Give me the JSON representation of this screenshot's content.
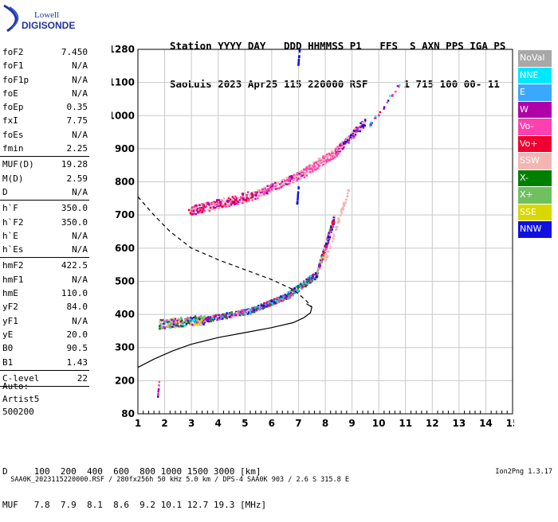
{
  "logo": {
    "line1": "Lowell",
    "line2": "DIGISONDE"
  },
  "header": {
    "line1": "Station YYYY DAY   DDD HHMMSS P1   FFS  S AXN PPS IGA PS",
    "line2": "SaoLuis 2023 Apr25 115 220000 RSF      1 715 100 00- 11"
  },
  "params": [
    {
      "k": "foF2",
      "v": "7.450"
    },
    {
      "k": "foF1",
      "v": "N/A"
    },
    {
      "k": "foF1p",
      "v": "N/A"
    },
    {
      "k": "foE",
      "v": "N/A"
    },
    {
      "k": "foEp",
      "v": "0.35"
    },
    {
      "k": "fxI",
      "v": "7.75"
    },
    {
      "k": "foEs",
      "v": "N/A"
    },
    {
      "k": "fmin",
      "v": "2.25"
    },
    {
      "sep": true
    },
    {
      "k": "MUF(D)",
      "v": "19.28"
    },
    {
      "k": "M(D)",
      "v": "2.59"
    },
    {
      "k": "D",
      "v": "N/A"
    },
    {
      "sep": true
    },
    {
      "k": "h`F",
      "v": "350.0"
    },
    {
      "k": "h`F2",
      "v": "350.0"
    },
    {
      "k": "h`E",
      "v": "N/A"
    },
    {
      "k": "h`Es",
      "v": "N/A"
    },
    {
      "sep": true
    },
    {
      "k": "hmF2",
      "v": "422.5"
    },
    {
      "k": "hmF1",
      "v": "N/A"
    },
    {
      "k": "hmE",
      "v": "110.0"
    },
    {
      "k": "yF2",
      "v": "84.0"
    },
    {
      "k": "yF1",
      "v": "N/A"
    },
    {
      "k": "yE",
      "v": "20.0"
    },
    {
      "k": "B0",
      "v": "90.5"
    },
    {
      "k": "B1",
      "v": "1.43"
    },
    {
      "sep": true
    },
    {
      "k": "C-level",
      "v": "22"
    },
    {
      "sep": true
    }
  ],
  "auto": {
    "line1": "Auto:",
    "line2": "Artist5",
    "line3": "500200"
  },
  "legend": [
    {
      "label": "NoVal",
      "color": "#a8a8a8"
    },
    {
      "label": "NNE",
      "color": "#00e8ff"
    },
    {
      "label": "E",
      "color": "#3aa8ff"
    },
    {
      "label": "W",
      "color": "#b000a8"
    },
    {
      "label": "Vo-",
      "color": "#ff40b0"
    },
    {
      "label": "Vo+",
      "color": "#ee0030"
    },
    {
      "label": "SSW",
      "color": "#f4b4b4"
    },
    {
      "label": "X-",
      "color": "#008000"
    },
    {
      "label": "X+",
      "color": "#70c060"
    },
    {
      "label": "SSE",
      "color": "#d8d800"
    },
    {
      "label": "NNW",
      "color": "#1010e0"
    }
  ],
  "dmuf": {
    "line1": "D     100  200  400  600  800 1000 1500 3000 [km]",
    "line2": "MUF   7.8  7.9  8.1  8.6  9.2 10.1 12.7 19.3 [MHz]"
  },
  "footer": {
    "left": "SAA0K_2023115220000.RSF / 280fx256h 50 kHz 5.0 km / DPS-4 SAA0K 903 / 2.6 S 315.8 E",
    "right": "Ion2Png 1.3.17"
  },
  "chart_data": {
    "type": "scatter",
    "xlim": [
      1,
      15
    ],
    "ylim": [
      80,
      1280
    ],
    "x_ticks": [
      "1",
      "2",
      "3",
      "4",
      "5",
      "6",
      "7",
      "8",
      "9",
      "10",
      "11",
      "12",
      "13",
      "14",
      "15"
    ],
    "y_ticks": [
      "80",
      "200",
      "300",
      "400",
      "500",
      "600",
      "700",
      "800",
      "900",
      "1000",
      "1100",
      "1280"
    ],
    "y_tick_values": [
      80,
      200,
      300,
      400,
      500,
      600,
      700,
      800,
      900,
      1000,
      1100,
      1280
    ],
    "grid": true,
    "profile_solid": [
      [
        1,
        240
      ],
      [
        1.6,
        265
      ],
      [
        2.3,
        290
      ],
      [
        3,
        310
      ],
      [
        4,
        330
      ],
      [
        5,
        345
      ],
      [
        6,
        360
      ],
      [
        6.8,
        375
      ],
      [
        7.2,
        390
      ],
      [
        7.45,
        405
      ],
      [
        7.5,
        422
      ],
      [
        7.3,
        432
      ]
    ],
    "profile_dashed": [
      [
        1,
        755
      ],
      [
        1.6,
        700
      ],
      [
        2.2,
        650
      ],
      [
        3,
        600
      ],
      [
        4,
        565
      ],
      [
        5,
        535
      ],
      [
        6,
        505
      ],
      [
        6.8,
        475
      ],
      [
        7.25,
        445
      ],
      [
        7.5,
        422
      ]
    ],
    "traces": [
      {
        "x0": 1.8,
        "x1": 3.5,
        "y0": 370,
        "y1": 383,
        "spread": 14,
        "n": 260,
        "colors": [
          "#b000a8",
          "#ff40b0",
          "#f4b4b4",
          "#1010e0",
          "#008000",
          "#d8d800",
          "#a8a8a8",
          "#70c060",
          "#00e8ff"
        ]
      },
      {
        "x0": 3.5,
        "x1": 5.2,
        "y0": 383,
        "y1": 410,
        "spread": 8,
        "n": 200,
        "colors": [
          "#b000a8",
          "#ff40b0",
          "#1010e0",
          "#3aa8ff",
          "#008000",
          "#f4b4b4"
        ]
      },
      {
        "x0": 5.2,
        "x1": 6.6,
        "y0": 410,
        "y1": 455,
        "spread": 8,
        "n": 200,
        "colors": [
          "#b000a8",
          "#1010e0",
          "#3aa8ff",
          "#00e8ff",
          "#ee0030",
          "#ff40b0",
          "#008000"
        ]
      },
      {
        "x0": 6.6,
        "x1": 7.7,
        "y0": 455,
        "y1": 520,
        "spread": 10,
        "n": 160,
        "colors": [
          "#00e8ff",
          "#3aa8ff",
          "#b000a8",
          "#ff40b0",
          "#1010e0",
          "#008000"
        ]
      },
      {
        "x0": 7.7,
        "x1": 8.35,
        "y0": 520,
        "y1": 690,
        "spread": 12,
        "n": 160,
        "colors": [
          "#b000a8",
          "#ff40b0",
          "#ee0030",
          "#1010e0",
          "#f4b4b4",
          "#70c060"
        ]
      },
      {
        "x0": 8.0,
        "x1": 8.9,
        "y0": 560,
        "y1": 780,
        "spread": 10,
        "n": 60,
        "colors": [
          "#f4b4b4"
        ]
      },
      {
        "x0": 2.9,
        "x1": 5.4,
        "y0": 710,
        "y1": 760,
        "spread": 14,
        "n": 260,
        "colors": [
          "#b000a8",
          "#ff40b0",
          "#ee0030",
          "#f4b4b4"
        ]
      },
      {
        "x0": 5.4,
        "x1": 7.2,
        "y0": 760,
        "y1": 825,
        "spread": 12,
        "n": 180,
        "colors": [
          "#f4b4b4",
          "#ff40b0",
          "#b000a8"
        ]
      },
      {
        "x0": 7.2,
        "x1": 8.5,
        "y0": 825,
        "y1": 895,
        "spread": 14,
        "n": 170,
        "colors": [
          "#f4b4b4",
          "#ff40b0"
        ]
      },
      {
        "x0": 8.4,
        "x1": 9.5,
        "y0": 890,
        "y1": 980,
        "spread": 12,
        "n": 150,
        "colors": [
          "#f4b4b4",
          "#b000a8",
          "#ff40b0",
          "#1010e0"
        ]
      },
      {
        "x0": 9.6,
        "x1": 10.8,
        "y0": 960,
        "y1": 1095,
        "spread": 8,
        "n": 22,
        "colors": [
          "#b000a8",
          "#1010e0",
          "#ee0030",
          "#ff40b0",
          "#00e8ff"
        ]
      },
      {
        "x0": 7.0,
        "x1": 7.05,
        "y0": 1195,
        "y1": 1280,
        "spread": 2,
        "n": 14,
        "colors": [
          "#1010e0"
        ]
      },
      {
        "x0": 6.95,
        "x1": 7.05,
        "y0": 730,
        "y1": 820,
        "spread": 2,
        "n": 14,
        "colors": [
          "#1010e0"
        ]
      },
      {
        "x0": 1.75,
        "x1": 1.8,
        "y0": 140,
        "y1": 195,
        "spread": 2,
        "n": 12,
        "colors": [
          "#b000a8",
          "#ff40b0",
          "#1010e0"
        ]
      }
    ]
  }
}
